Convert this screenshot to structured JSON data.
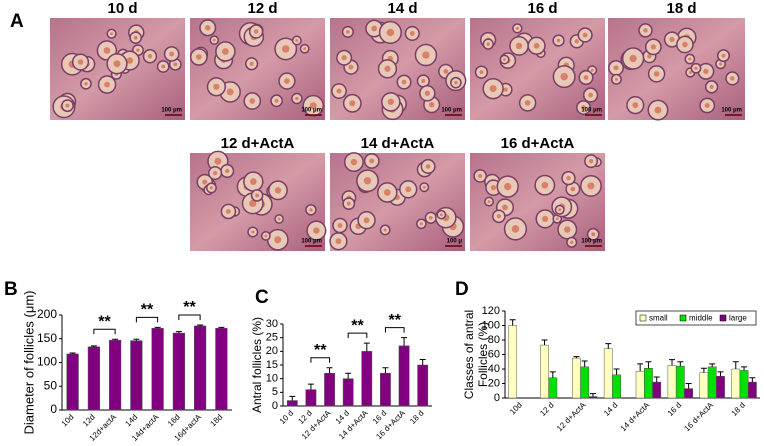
{
  "panels": {
    "a": "A",
    "b": "B",
    "c": "C",
    "d": "D"
  },
  "micrographs": [
    {
      "label": "10 d",
      "scale_bar": "100 μm"
    },
    {
      "label": "12 d",
      "scale_bar": "100 μm"
    },
    {
      "label": "14 d",
      "scale_bar": "100 μm"
    },
    {
      "label": "16 d",
      "scale_bar": "100 μm"
    },
    {
      "label": "18 d",
      "scale_bar": "100 μm"
    },
    {
      "label": "12 d+ActA",
      "scale_bar": "100 μm"
    },
    {
      "label": "14 d+ActA",
      "scale_bar": "100 μ"
    },
    {
      "label": "16 d+ActA",
      "scale_bar": "100 μm"
    }
  ],
  "chart_data": [
    {
      "type": "bar",
      "y_label": "Diameter of follicles  (μm)",
      "categories": [
        "10d",
        "12d",
        "12d+actA",
        "14d",
        "14d+actA",
        "16d",
        "16d+actA",
        "18d"
      ],
      "values": [
        118,
        133,
        147,
        146,
        172,
        162,
        177,
        172
      ],
      "errors": [
        2,
        2,
        2,
        3,
        2,
        3,
        2,
        2
      ],
      "color": "#800080",
      "ylim": [
        0,
        200
      ],
      "yticks": [
        0,
        50,
        100,
        150,
        200
      ],
      "annotations": [
        "**",
        "**",
        "**"
      ]
    },
    {
      "type": "bar",
      "y_label": "Antral follicles (%)",
      "categories": [
        "10 d",
        "12 d",
        "12 d+ActA",
        "14 d",
        "14 d+ActA",
        "16 d",
        "16 d+ActA",
        "18 d"
      ],
      "values": [
        2,
        6,
        12,
        10,
        20,
        12,
        22,
        15
      ],
      "errors": [
        1.5,
        2,
        2,
        2,
        3,
        2,
        3,
        2
      ],
      "color": "#800080",
      "ylim": [
        0,
        30
      ],
      "yticks": [
        0,
        5,
        10,
        15,
        20,
        25,
        30
      ],
      "annotations": [
        "**",
        "**",
        "**"
      ]
    },
    {
      "type": "bar",
      "y_label": [
        "Classes of antral",
        "Follicles (%)"
      ],
      "categories": [
        "10d",
        "12 d",
        "12 d+ActA",
        "14 d",
        "14 d+ActA",
        "16 d",
        "16 d+ActA",
        "18 d"
      ],
      "series": [
        {
          "name": "small",
          "color": "#ffffc0",
          "values": [
            100,
            73,
            55,
            68,
            37,
            45,
            35,
            40
          ],
          "errors": [
            8,
            7,
            2,
            7,
            10,
            8,
            6,
            10
          ]
        },
        {
          "name": "middle",
          "color": "#00e000",
          "values": [
            0,
            28,
            43,
            32,
            41,
            44,
            43,
            38
          ],
          "errors": [
            0,
            8,
            8,
            8,
            9,
            6,
            4,
            5
          ]
        },
        {
          "name": "large",
          "color": "#800080",
          "values": [
            0,
            0,
            2,
            0,
            22,
            13,
            30,
            22
          ],
          "errors": [
            0,
            0,
            4,
            0,
            7,
            7,
            6,
            6
          ]
        }
      ],
      "ylim": [
        0,
        120
      ],
      "yticks": [
        0,
        20,
        40,
        60,
        80,
        100,
        120
      ],
      "legend": "upper right"
    }
  ]
}
